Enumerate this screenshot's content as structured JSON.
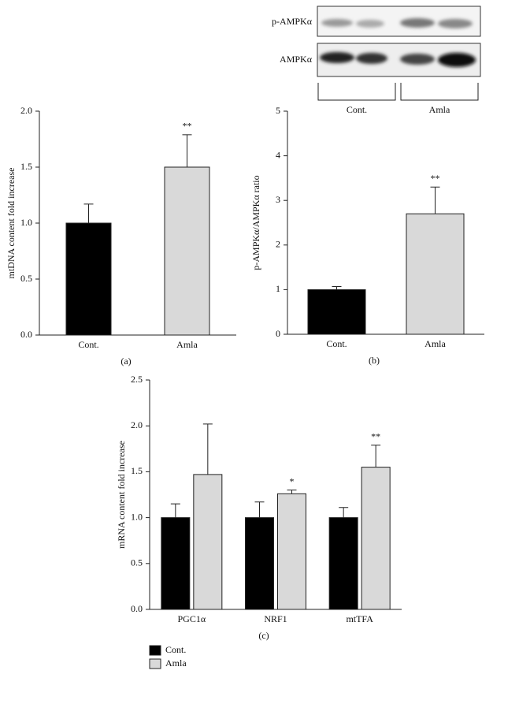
{
  "blot": {
    "rows": [
      "p-AMPKα",
      "AMPKα"
    ],
    "groups": [
      "Cont.",
      "Amla"
    ]
  },
  "chart_data": [
    {
      "type": "bar",
      "panel_label": "(a)",
      "y_label": "mtDNA content fold increase",
      "categories": [
        "Cont.",
        "Amla"
      ],
      "values": [
        1.0,
        1.5
      ],
      "errors": [
        0.17,
        0.29
      ],
      "significance": [
        null,
        "**"
      ],
      "colors": [
        "#000000",
        "#d9d9d9"
      ],
      "ylim": [
        0,
        2
      ],
      "yticks": [
        {
          "value": 0,
          "label": "0.0"
        },
        {
          "value": 0.5,
          "label": "0.5"
        },
        {
          "value": 1,
          "label": "1.0"
        },
        {
          "value": 1.5,
          "label": "1.5"
        },
        {
          "value": 2,
          "label": "2.0"
        }
      ]
    },
    {
      "type": "bar",
      "panel_label": "(b)",
      "y_label": "p-AMPKα/AMPKα ratio",
      "categories": [
        "Cont.",
        "Amla"
      ],
      "values": [
        1.0,
        2.7
      ],
      "errors": [
        0.07,
        0.6
      ],
      "significance": [
        null,
        "**"
      ],
      "colors": [
        "#000000",
        "#d9d9d9"
      ],
      "ylim": [
        0,
        5
      ],
      "yticks": [
        0,
        1,
        2,
        3,
        4,
        5
      ]
    },
    {
      "type": "grouped_bar",
      "panel_label": "(c)",
      "y_label": "mRNA content fold increase",
      "categories": [
        "PGC1α",
        "NRF1",
        "mtTFA"
      ],
      "series": [
        {
          "name": "Cont.",
          "color": "#000000",
          "values": [
            1.0,
            1.0,
            1.0
          ],
          "errors": [
            0.15,
            0.17,
            0.11
          ]
        },
        {
          "name": "Amla",
          "color": "#d9d9d9",
          "values": [
            1.47,
            1.26,
            1.55
          ],
          "errors": [
            0.55,
            0.04,
            0.24
          ],
          "significance": [
            null,
            "*",
            "**"
          ]
        }
      ],
      "ylim": [
        0,
        2.5
      ],
      "yticks": [
        {
          "value": 0,
          "label": "0.0"
        },
        {
          "value": 0.5,
          "label": "0.5"
        },
        {
          "value": 1,
          "label": "1.0"
        },
        {
          "value": 1.5,
          "label": "1.5"
        },
        {
          "value": 2,
          "label": "2.0"
        },
        {
          "value": 2.5,
          "label": "2.5"
        }
      ],
      "legend": "bottom-left"
    }
  ]
}
